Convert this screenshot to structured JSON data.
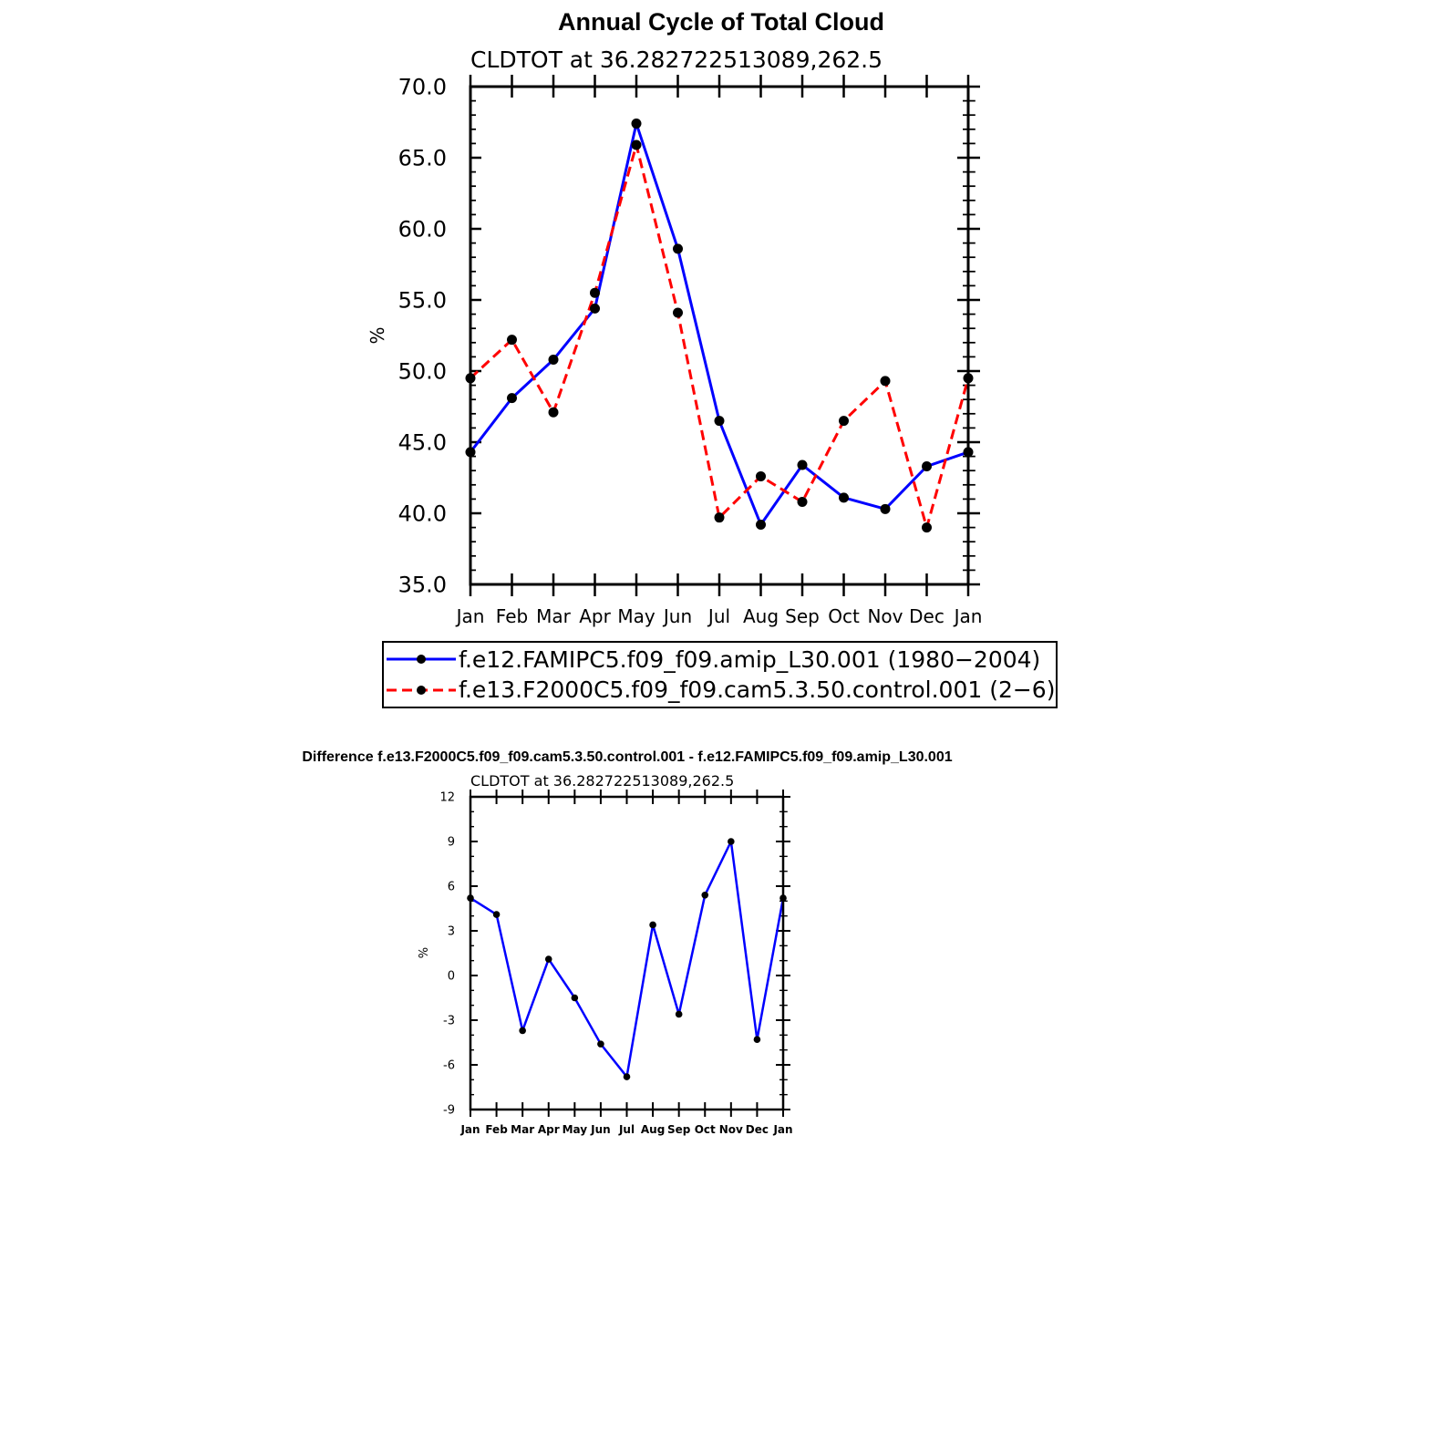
{
  "chart_data": [
    {
      "type": "line",
      "title": "Annual Cycle of Total Cloud",
      "subtitle": "CLDTOT at 36.282722513089,262.5",
      "xlabel": "",
      "ylabel": "%",
      "categories": [
        "Jan",
        "Feb",
        "Mar",
        "Apr",
        "May",
        "Jun",
        "Jul",
        "Aug",
        "Sep",
        "Oct",
        "Nov",
        "Dec",
        "Jan"
      ],
      "ylim": [
        35.0,
        70.0
      ],
      "yticks": [
        "35.0",
        "40.0",
        "45.0",
        "50.0",
        "55.0",
        "60.0",
        "65.0",
        "70.0"
      ],
      "legend_position": "bottom",
      "series": [
        {
          "name": "f.e12.FAMIPC5.f09_f09.amip_L30.001 (1980−2004)",
          "color": "#0000ff",
          "style": "solid",
          "values": [
            44.3,
            48.1,
            50.8,
            54.4,
            67.4,
            58.6,
            46.5,
            39.2,
            43.4,
            41.1,
            40.3,
            43.3,
            44.3
          ]
        },
        {
          "name": "f.e13.F2000C5.f09_f09.cam5.3.50.control.001 (2−6)",
          "color": "#ff0000",
          "style": "dashed",
          "values": [
            49.5,
            52.2,
            47.1,
            55.5,
            65.9,
            54.1,
            39.7,
            42.6,
            40.8,
            46.5,
            49.3,
            39.0,
            49.5
          ]
        }
      ]
    },
    {
      "type": "line",
      "title": "Difference f.e13.F2000C5.f09_f09.cam5.3.50.control.001 - f.e12.FAMIPC5.f09_f09.amip_L30.001",
      "subtitle": "CLDTOT at 36.282722513089,262.5",
      "xlabel": "",
      "ylabel": "%",
      "categories": [
        "Jan",
        "Feb",
        "Mar",
        "Apr",
        "May",
        "Jun",
        "Jul",
        "Aug",
        "Sep",
        "Oct",
        "Nov",
        "Dec",
        "Jan"
      ],
      "ylim": [
        -9,
        12
      ],
      "yticks": [
        "-9",
        "-6",
        "-3",
        "0",
        "3",
        "6",
        "9",
        "12"
      ],
      "series": [
        {
          "color": "#0000ff",
          "style": "solid",
          "values": [
            5.2,
            4.1,
            -3.7,
            1.1,
            -1.5,
            -4.6,
            -6.8,
            3.4,
            -2.6,
            5.4,
            9.0,
            -4.3,
            5.2
          ]
        }
      ]
    }
  ]
}
